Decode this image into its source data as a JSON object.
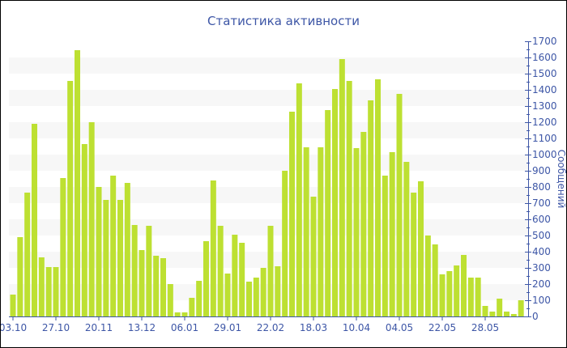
{
  "chart_data": {
    "type": "bar",
    "title": "Статистика активности",
    "xlabel": "",
    "ylabel": "Сообщений",
    "ylim": [
      0,
      1700
    ],
    "y_ticks": [
      0,
      100,
      200,
      300,
      400,
      500,
      600,
      700,
      800,
      900,
      1000,
      1100,
      1200,
      1300,
      1400,
      1500,
      1600,
      1700
    ],
    "y_axis_side": "right",
    "grid": "alternating horizontal bands",
    "categories": [
      "03.10",
      "",
      "",
      "",
      "",
      "",
      "27.10",
      "",
      "",
      "",
      "",
      "",
      "20.11",
      "",
      "",
      "",
      "",
      "",
      "13.12",
      "",
      "",
      "",
      "",
      "",
      "06.01",
      "",
      "",
      "",
      "",
      "",
      "29.01",
      "",
      "",
      "",
      "",
      "",
      "22.02",
      "",
      "",
      "",
      "",
      "",
      "18.03",
      "",
      "",
      "",
      "",
      "",
      "10.04",
      "",
      "",
      "",
      "",
      "",
      "04.05",
      "",
      "",
      "",
      "",
      "",
      "22.05",
      "",
      "",
      "",
      "",
      "",
      "28.05",
      "",
      "",
      "",
      "",
      ""
    ],
    "values": [
      135,
      490,
      765,
      1190,
      365,
      305,
      305,
      855,
      1455,
      1645,
      1065,
      1200,
      800,
      720,
      870,
      720,
      825,
      565,
      410,
      560,
      375,
      360,
      200,
      25,
      25,
      115,
      220,
      465,
      840,
      560,
      265,
      505,
      455,
      215,
      240,
      300,
      560,
      310,
      900,
      1265,
      1440,
      1045,
      740,
      1045,
      1275,
      1405,
      1590,
      1455,
      1040,
      1140,
      1335,
      1465,
      870,
      1015,
      1375,
      955,
      765,
      835,
      500,
      445,
      260,
      280,
      315,
      380,
      240,
      240,
      65,
      30,
      110,
      30,
      15,
      100
    ],
    "colors": {
      "bar": "#bde032",
      "text": "#3d56a6",
      "band": "#f7f7f7"
    }
  }
}
